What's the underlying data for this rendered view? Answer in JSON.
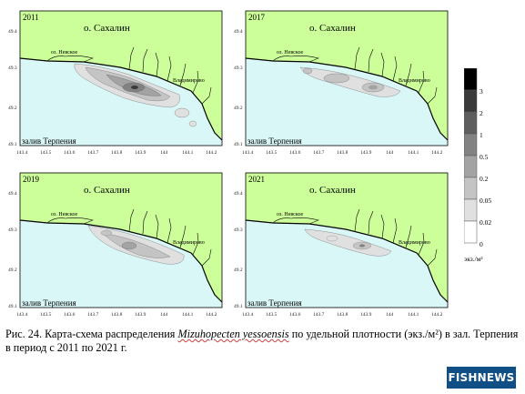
{
  "map": {
    "island_label": "о. Сахалин",
    "gulf_label": "залив Терпения",
    "place_nevskoe": "оз. Невское",
    "place_vladimirovo": "Владимирово",
    "x_ticks": [
      "143.4",
      "143.5",
      "143.6",
      "143.7",
      "143.8",
      "143.9",
      "144",
      "144.1",
      "144.2"
    ],
    "y_ticks": [
      "49.4",
      "49.3",
      "49.2",
      "49.1"
    ],
    "land_color": "#ccff99",
    "sea_color": "#d9f7f7",
    "panels": [
      {
        "year": "2011"
      },
      {
        "year": "2017"
      },
      {
        "year": "2019"
      },
      {
        "year": "2021"
      }
    ]
  },
  "legend": {
    "values": [
      "3",
      "2",
      "1",
      "0.5",
      "0.2",
      "0.05",
      "0.02",
      "0"
    ],
    "colors": [
      "#000000",
      "#3a3a3a",
      "#5e5e5e",
      "#828282",
      "#a3a3a3",
      "#c4c4c4",
      "#e0e0e0",
      "#ffffff"
    ],
    "unit": "экз./м²"
  },
  "caption": {
    "prefix": "Рис. 24. Карта-схема распределения ",
    "species": "Mizuhopecten yessoensis",
    "suffix": " по удельной плотности (экз./м²) в зал. Терпения в период с 2011 по 2021 г."
  },
  "logo": {
    "text": "FISHNEWS"
  }
}
